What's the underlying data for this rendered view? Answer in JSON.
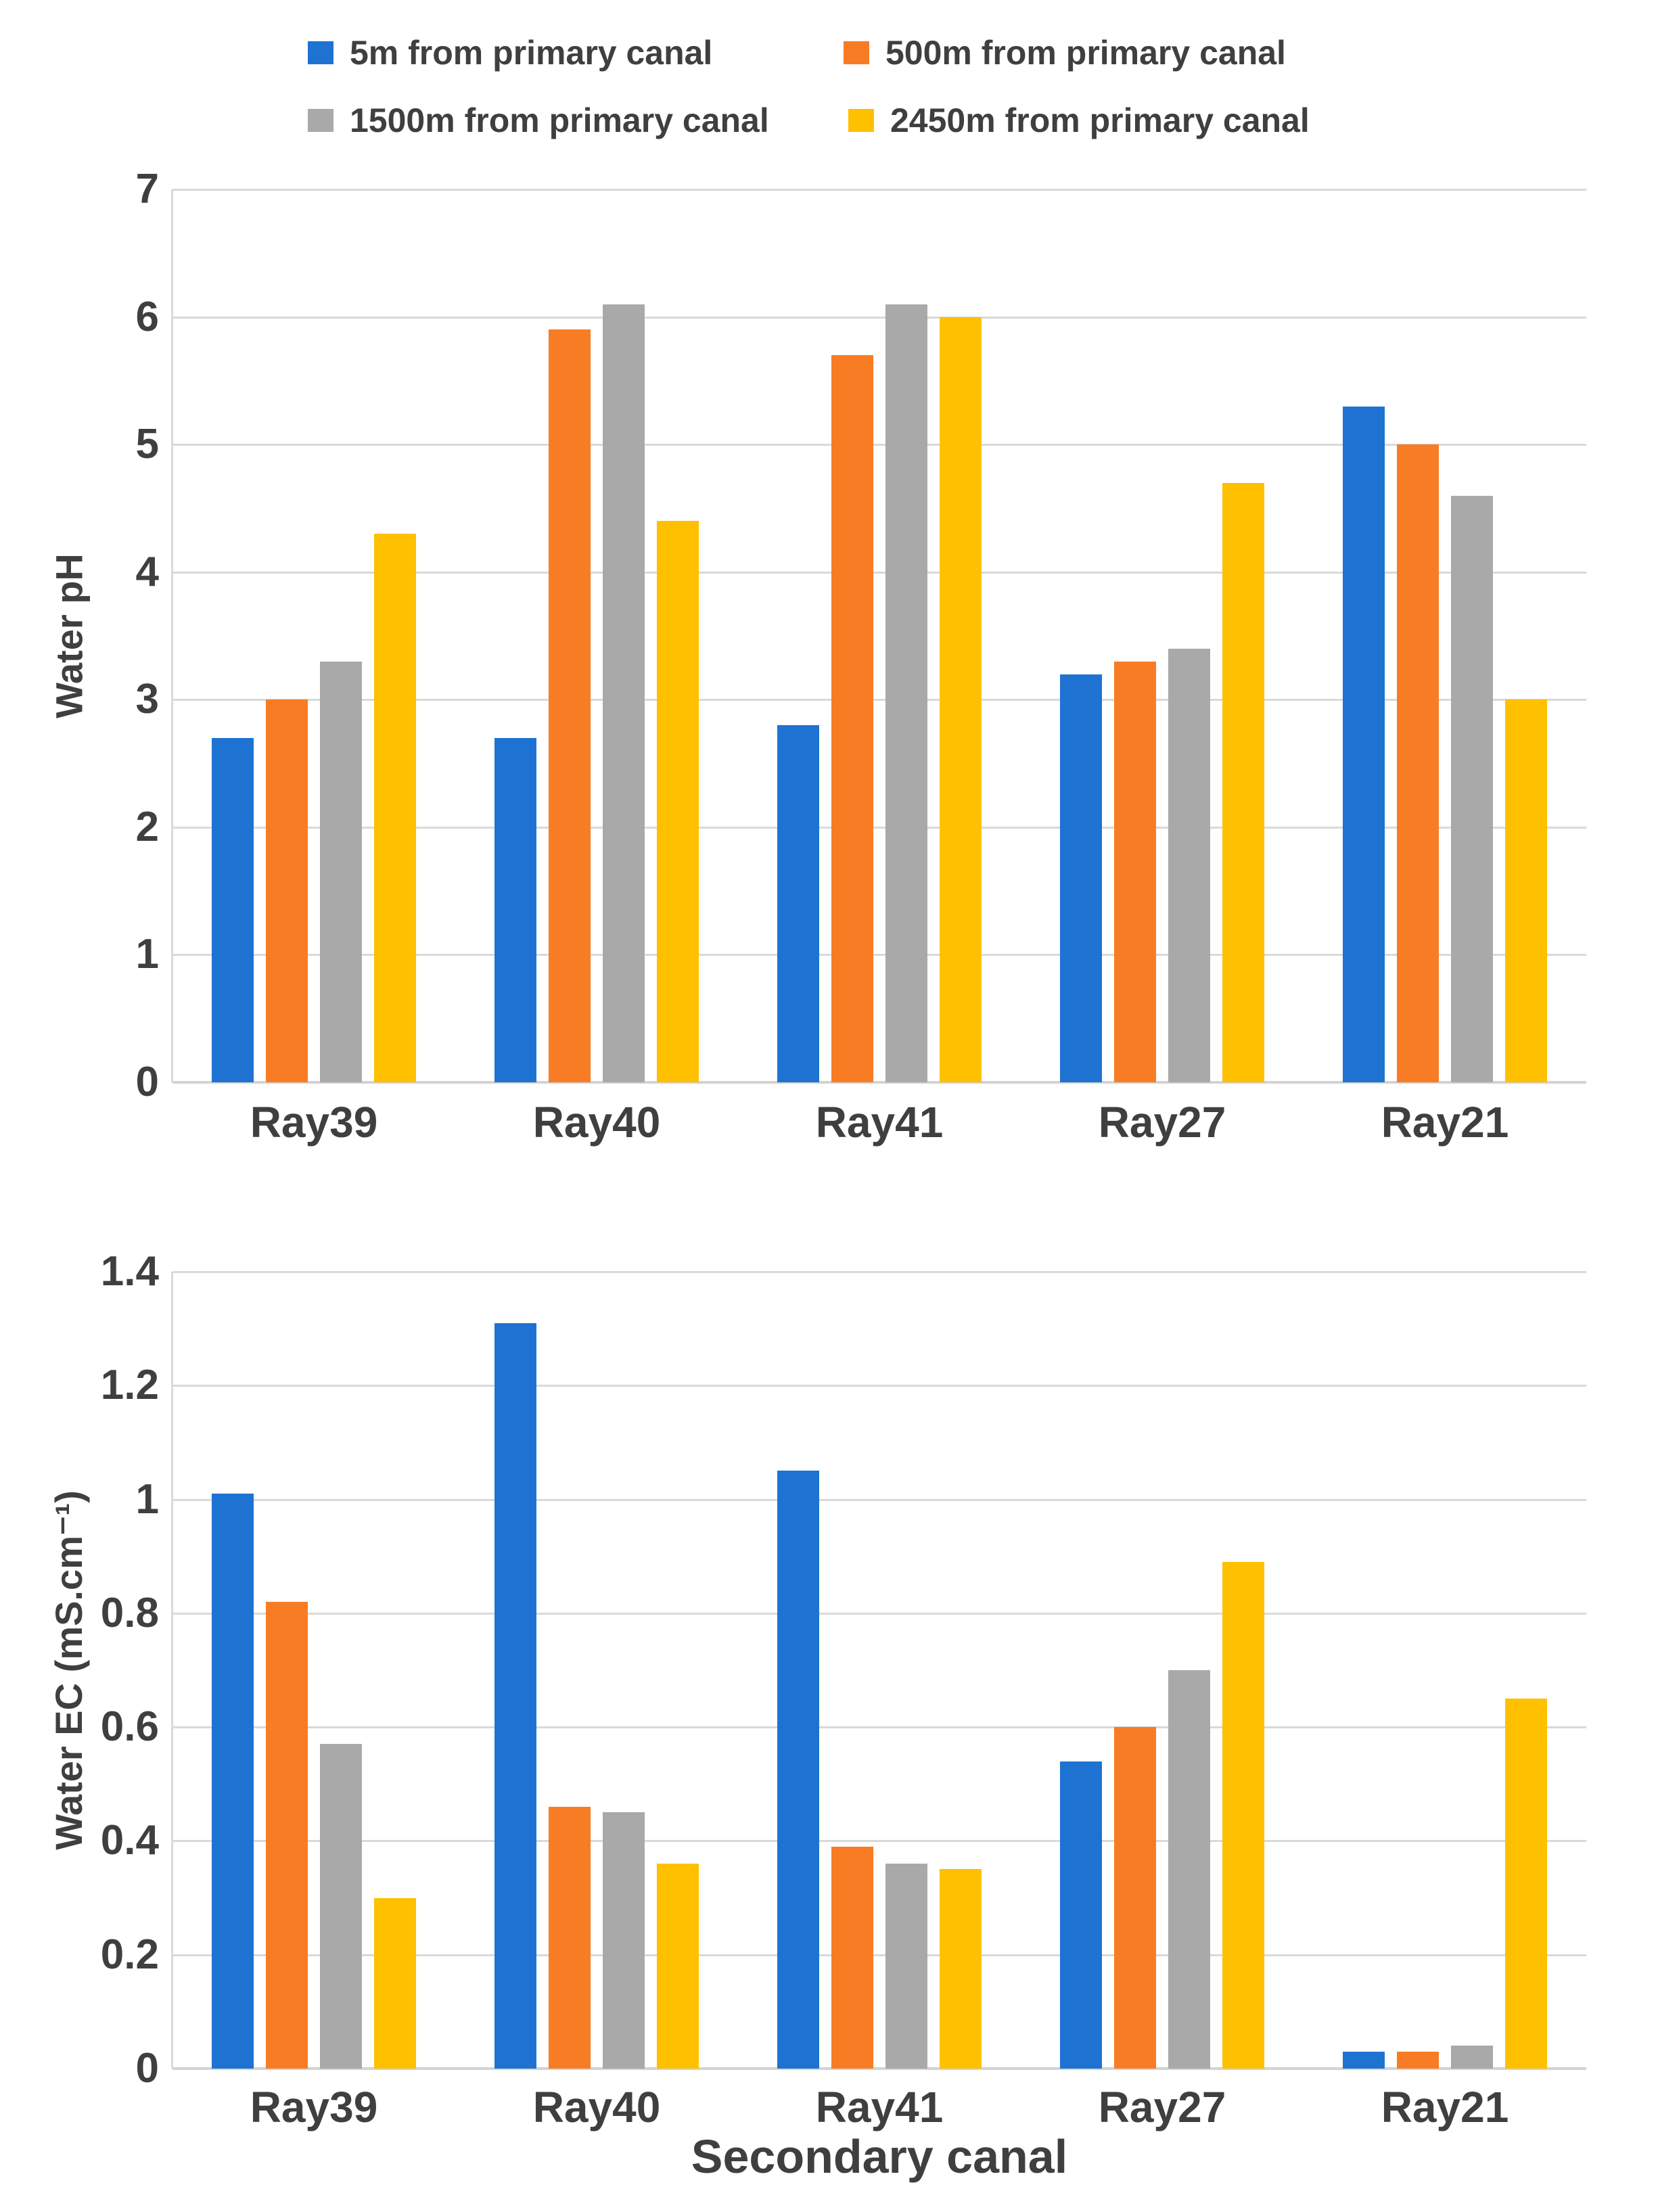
{
  "figure": {
    "background": "#ffffff",
    "text_color": "#3f3f3f",
    "grid_color": "#d9d9d9"
  },
  "legend": {
    "items": [
      {
        "label": "5m from primary canal",
        "color": "#1E73D2"
      },
      {
        "label": "500m from primary canal",
        "color": "#F87C23"
      },
      {
        "label": "1500m from primary canal",
        "color": "#A9A9A9"
      },
      {
        "label": "2450m from primary canal",
        "color": "#FFC000"
      }
    ]
  },
  "chart_data": [
    {
      "type": "bar",
      "title": "",
      "ylabel": "Water pH",
      "xlabel": "",
      "categories": [
        "Ray39",
        "Ray40",
        "Ray41",
        "Ray27",
        "Ray21"
      ],
      "series": [
        {
          "name": "5m from primary canal",
          "color": "#1E73D2",
          "values": [
            2.7,
            2.7,
            2.8,
            3.2,
            5.3
          ]
        },
        {
          "name": "500m from primary canal",
          "color": "#F87C23",
          "values": [
            3.0,
            5.9,
            5.7,
            3.3,
            5.0
          ]
        },
        {
          "name": "1500m from primary canal",
          "color": "#A9A9A9",
          "values": [
            3.3,
            6.1,
            6.1,
            3.4,
            4.6
          ]
        },
        {
          "name": "2450m from primary canal",
          "color": "#FFC000",
          "values": [
            4.3,
            4.4,
            6.0,
            4.7,
            3.0
          ]
        }
      ],
      "ylim": [
        0,
        7
      ],
      "yticks": [
        {
          "v": 0,
          "label": "0"
        },
        {
          "v": 1,
          "label": "1"
        },
        {
          "v": 2,
          "label": "2"
        },
        {
          "v": 3,
          "label": "3"
        },
        {
          "v": 4,
          "label": "4"
        },
        {
          "v": 5,
          "label": "5"
        },
        {
          "v": 6,
          "label": "6"
        },
        {
          "v": 7,
          "label": "7"
        }
      ],
      "grid": true,
      "legend_position": "top"
    },
    {
      "type": "bar",
      "title": "",
      "ylabel": "Water EC (mS.cm⁻¹)",
      "xlabel": "Secondary canal",
      "categories": [
        "Ray39",
        "Ray40",
        "Ray41",
        "Ray27",
        "Ray21"
      ],
      "series": [
        {
          "name": "5m from primary canal",
          "color": "#1E73D2",
          "values": [
            1.01,
            1.31,
            1.05,
            0.54,
            0.03
          ]
        },
        {
          "name": "500m from primary canal",
          "color": "#F87C23",
          "values": [
            0.82,
            0.46,
            0.39,
            0.6,
            0.03
          ]
        },
        {
          "name": "1500m from primary canal",
          "color": "#A9A9A9",
          "values": [
            0.57,
            0.45,
            0.36,
            0.7,
            0.04
          ]
        },
        {
          "name": "2450m from primary canal",
          "color": "#FFC000",
          "values": [
            0.3,
            0.36,
            0.35,
            0.89,
            0.65
          ]
        }
      ],
      "ylim": [
        0,
        1.4
      ],
      "yticks": [
        {
          "v": 0,
          "label": "0"
        },
        {
          "v": 0.2,
          "label": "0.2"
        },
        {
          "v": 0.4,
          "label": "0.4"
        },
        {
          "v": 0.6,
          "label": "0.6"
        },
        {
          "v": 0.8,
          "label": "0.8"
        },
        {
          "v": 1,
          "label": "1"
        },
        {
          "v": 1.2,
          "label": "1.2"
        },
        {
          "v": 1.4,
          "label": "1.4"
        }
      ],
      "grid": true,
      "legend_position": "none"
    }
  ]
}
